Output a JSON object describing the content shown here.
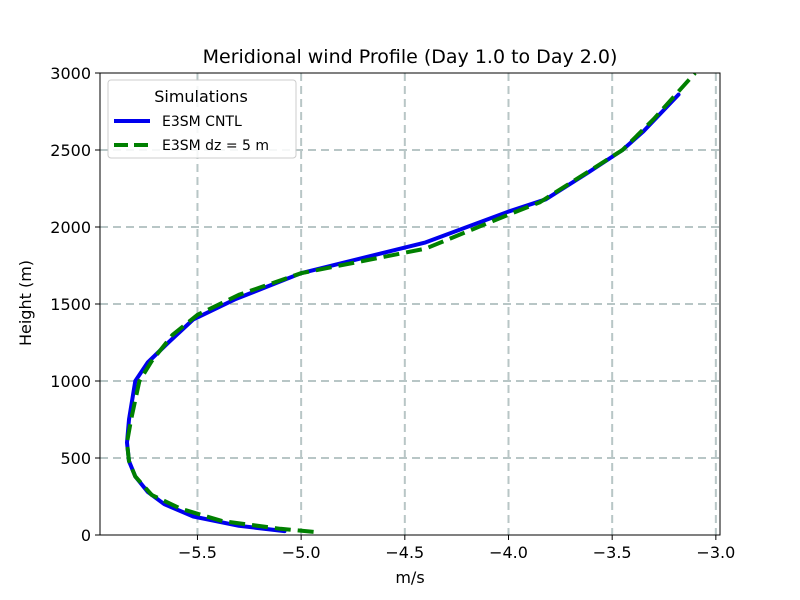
{
  "chart_data": {
    "type": "line",
    "title": "Meridional wind Profile (Day 1.0 to Day 2.0)",
    "xlabel": "m/s",
    "ylabel": "Height (m)",
    "xlim": [
      -5.97,
      -2.98
    ],
    "ylim": [
      0,
      3000
    ],
    "x_ticks": [
      -5.5,
      -5.0,
      -4.5,
      -4.0,
      -3.5,
      -3.0
    ],
    "x_tick_labels": [
      "−5.5",
      "−5.0",
      "−4.5",
      "−4.0",
      "−3.5",
      "−3.0"
    ],
    "y_ticks": [
      0,
      500,
      1000,
      1500,
      2000,
      2500,
      3000
    ],
    "y_tick_labels": [
      "0",
      "500",
      "1000",
      "1500",
      "2000",
      "2500",
      "3000"
    ],
    "grid": true,
    "legend": {
      "title": "Simulations",
      "position": "upper-left"
    },
    "series": [
      {
        "name": "E3SM CNTL",
        "color": "#0000ee",
        "style": "solid",
        "x": [
          -5.08,
          -5.3,
          -5.52,
          -5.66,
          -5.74,
          -5.8,
          -5.83,
          -5.84,
          -5.83,
          -5.8,
          -5.74,
          -5.64,
          -5.52,
          -5.32,
          -5.0,
          -4.4,
          -4.0,
          -3.82,
          -3.62,
          -3.45,
          -3.35,
          -3.18
        ],
        "y": [
          25,
          60,
          120,
          200,
          280,
          380,
          480,
          600,
          750,
          1000,
          1120,
          1250,
          1400,
          1530,
          1700,
          1900,
          2100,
          2180,
          2350,
          2500,
          2620,
          2860
        ]
      },
      {
        "name": "E3SM dz = 5 m",
        "color": "#008000",
        "style": "dashed",
        "x": [
          -4.94,
          -5.1,
          -5.38,
          -5.58,
          -5.72,
          -5.8,
          -5.83,
          -5.84,
          -5.82,
          -5.78,
          -5.72,
          -5.62,
          -5.5,
          -5.3,
          -5.0,
          -4.4,
          -4.0,
          -3.85,
          -3.65,
          -3.45,
          -3.3,
          -3.1
        ],
        "y": [
          20,
          40,
          90,
          170,
          260,
          380,
          480,
          600,
          750,
          1000,
          1130,
          1300,
          1430,
          1560,
          1700,
          1860,
          2080,
          2160,
          2330,
          2500,
          2700,
          3000
        ]
      }
    ]
  }
}
